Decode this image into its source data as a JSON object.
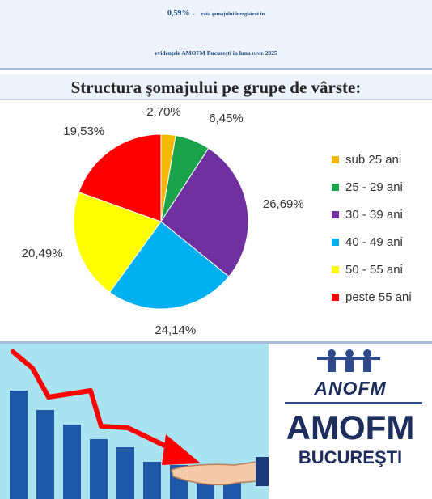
{
  "header": {
    "rate": "0,59%",
    "dash": "-",
    "rate_text": "rata şomajului înregistrat în",
    "line2_prefix": "evidenţele AMOFM Bucureşti în luna ",
    "month": "iunie",
    "year": " 2025"
  },
  "subheader": "Structura şomajului pe grupe de vârste:",
  "chart_data": {
    "type": "pie",
    "title": "",
    "categories": [
      "sub 25 ani",
      "25 - 29 ani",
      "30 - 39 ani",
      "40 - 49 ani",
      "50 - 55 ani",
      "peste 55 ani"
    ],
    "values": [
      2.7,
      6.45,
      26.69,
      24.14,
      20.49,
      19.53
    ],
    "labels": [
      "2,70%",
      "6,45%",
      "26,69%",
      "24,14%",
      "20,49%",
      "19,53%"
    ],
    "colors": [
      "#f5b800",
      "#1aa34a",
      "#7030a0",
      "#00b0f0",
      "#ffff00",
      "#ff0000"
    ],
    "start": "12 o'clock",
    "direction": "clockwise",
    "legend_position": "right"
  },
  "logo": {
    "word": "ANOFM",
    "brand": "AMOFM",
    "city": "BUCUREŞTI"
  },
  "decline_graphic": {
    "bar_color": "#1f58a8",
    "arrow_color": "#ff0000"
  }
}
